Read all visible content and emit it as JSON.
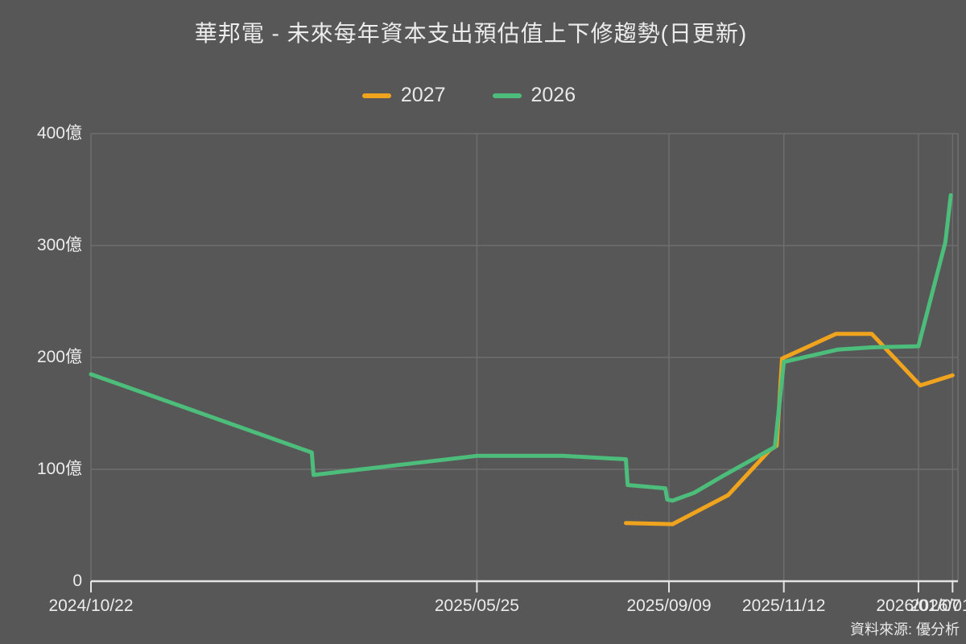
{
  "title": "華邦電 - 未來每年資本支出預估值上下修趨勢(日更新)",
  "source_note": "資料來源: 優分析",
  "legend": [
    {
      "label": "2027",
      "color": "#f0a41e"
    },
    {
      "label": "2026",
      "color": "#4cbd7a"
    }
  ],
  "colors": {
    "background": "#575757",
    "text": "#ececec",
    "grid": "#6e6e6e",
    "axis": "#e3e3e3",
    "series_2027": "#f0a41e",
    "series_2026": "#4cbd7a"
  },
  "chart_data": {
    "type": "line",
    "title": "華邦電 - 未來每年資本支出預估值上下修趨勢(日更新)",
    "value_unit": "億",
    "legend_position": "top-center",
    "grid": true,
    "x_axis": {
      "range": [
        0,
        483
      ],
      "ticks": [
        {
          "t": 0,
          "label": "2024/10/22"
        },
        {
          "t": 215,
          "label": "2025/05/25"
        },
        {
          "t": 322,
          "label": "2025/09/09"
        },
        {
          "t": 386,
          "label": "2025/11/12"
        },
        {
          "t": 461,
          "label": "2026/01/07"
        },
        {
          "t": 480,
          "label": "2026/01/27"
        }
      ]
    },
    "y_axis": {
      "range": [
        0,
        400
      ],
      "ticks": [
        {
          "v": 0,
          "label": "0"
        },
        {
          "v": 100,
          "label": "100億"
        },
        {
          "v": 200,
          "label": "200億"
        },
        {
          "v": 300,
          "label": "300億"
        },
        {
          "v": 400,
          "label": "400億"
        }
      ]
    },
    "series": [
      {
        "name": "2027",
        "color": "#f0a41e",
        "points": [
          {
            "t": 298,
            "v": 52
          },
          {
            "t": 324,
            "v": 51
          },
          {
            "t": 355,
            "v": 77
          },
          {
            "t": 378,
            "v": 117
          },
          {
            "t": 382,
            "v": 121
          },
          {
            "t": 385,
            "v": 199
          },
          {
            "t": 415,
            "v": 221
          },
          {
            "t": 435,
            "v": 221
          },
          {
            "t": 462,
            "v": 175
          },
          {
            "t": 480,
            "v": 184
          }
        ]
      },
      {
        "name": "2026",
        "color": "#4cbd7a",
        "points": [
          {
            "t": 0,
            "v": 185
          },
          {
            "t": 123,
            "v": 115
          },
          {
            "t": 124,
            "v": 95
          },
          {
            "t": 215,
            "v": 112
          },
          {
            "t": 263,
            "v": 112
          },
          {
            "t": 298,
            "v": 109
          },
          {
            "t": 299,
            "v": 86
          },
          {
            "t": 320,
            "v": 83
          },
          {
            "t": 321,
            "v": 73
          },
          {
            "t": 324,
            "v": 72
          },
          {
            "t": 336,
            "v": 79
          },
          {
            "t": 352,
            "v": 94
          },
          {
            "t": 381,
            "v": 120
          },
          {
            "t": 386,
            "v": 196
          },
          {
            "t": 416,
            "v": 207
          },
          {
            "t": 435,
            "v": 209
          },
          {
            "t": 461,
            "v": 210
          },
          {
            "t": 476,
            "v": 303
          },
          {
            "t": 479,
            "v": 345
          }
        ]
      }
    ]
  }
}
